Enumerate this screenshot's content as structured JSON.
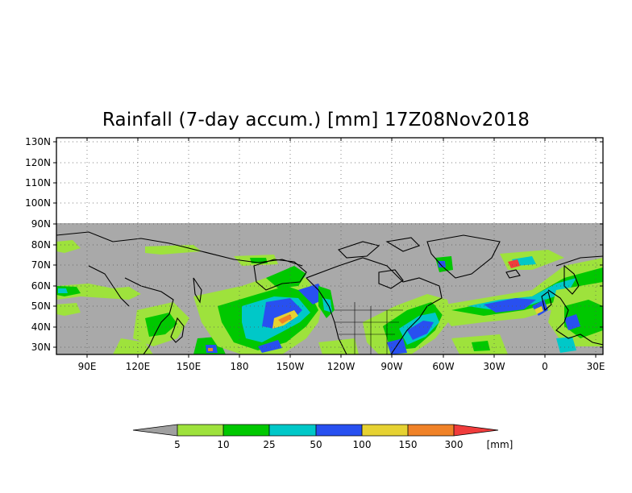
{
  "title": "Rainfall (7-day accum.) [mm] 17Z08Nov2018",
  "map": {
    "lat_labels": [
      "130N",
      "120N",
      "110N",
      "100N",
      "90N",
      "80N",
      "70N",
      "60N",
      "50N",
      "40N",
      "30N"
    ],
    "lon_labels": [
      "90E",
      "120E",
      "150E",
      "180",
      "150W",
      "120W",
      "90W",
      "60W",
      "30W",
      "0",
      "30E"
    ],
    "data_region_top_label": "90N",
    "no_data_color": "#a9a9a9"
  },
  "colorbar": {
    "labels": [
      "5",
      "10",
      "25",
      "50",
      "100",
      "150",
      "300"
    ],
    "unit": "[mm]",
    "colors": [
      "#a0a0a0",
      "#9ee23c",
      "#00c800",
      "#00c8c8",
      "#2850f0",
      "#e6d232",
      "#f08228",
      "#f03c3c"
    ]
  },
  "chart_data": {
    "type": "heatmap",
    "title": "Rainfall (7-day accum.) [mm] 17Z08Nov2018",
    "legend_levels_mm": [
      5,
      10,
      25,
      50,
      100,
      150,
      300
    ],
    "legend_unit": "[mm]",
    "lat_range": [
      30,
      130
    ],
    "lon_range": [
      "90E",
      "30E"
    ]
  }
}
